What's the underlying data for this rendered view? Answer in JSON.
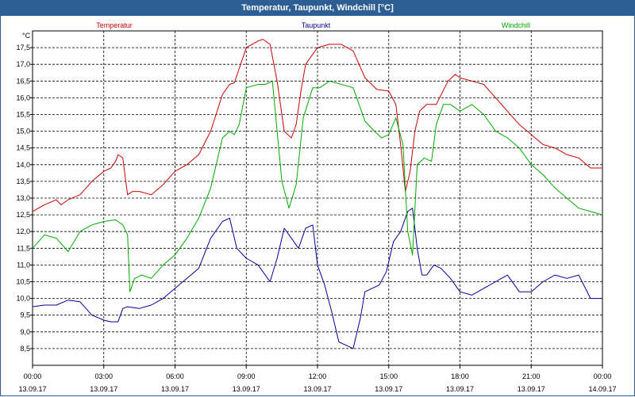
{
  "window": {
    "title": "Temperatur, Taupunkt, Windchill [°C]"
  },
  "colors": {
    "temperature": "#cc0000",
    "dewpoint": "#000099",
    "windchill": "#00aa00",
    "grid": "#000000",
    "frame": "#2c5d93"
  },
  "chart_data": {
    "type": "line",
    "title": "Temperatur, Taupunkt, Windchill [°C]",
    "ylabel": "°C",
    "ylim": [
      8.0,
      18.0
    ],
    "yticks": [
      "8,5",
      "9,0",
      "9,5",
      "10,0",
      "10,5",
      "11,0",
      "11,5",
      "12,0",
      "12,5",
      "13,0",
      "13,5",
      "14,0",
      "14,5",
      "15,0",
      "15,5",
      "16,0",
      "16,5",
      "17,0",
      "17,5"
    ],
    "xlim": [
      0,
      24
    ],
    "xticks": [
      {
        "time": "00:00",
        "date": "13.09.17"
      },
      {
        "time": "03:00",
        "date": "13.09.17"
      },
      {
        "time": "06:00",
        "date": "13.09.17"
      },
      {
        "time": "09:00",
        "date": "13.09.17"
      },
      {
        "time": "12:00",
        "date": "13.09.17"
      },
      {
        "time": "15:00",
        "date": "13.09.17"
      },
      {
        "time": "18:00",
        "date": "13.09.17"
      },
      {
        "time": "21:00",
        "date": "13.09.17"
      },
      {
        "time": "00:00",
        "date": "14.09.17"
      }
    ],
    "series": [
      {
        "name": "Temperatur",
        "x": [
          0,
          0.5,
          1,
          1.2,
          1.5,
          2,
          2.5,
          3,
          3.3,
          3.5,
          3.6,
          3.8,
          4,
          4.2,
          4.5,
          5,
          5.5,
          6,
          6.5,
          7,
          7.5,
          8,
          8.3,
          8.5,
          9,
          9.5,
          9.7,
          10,
          10.3,
          10.6,
          10.9,
          11.1,
          11.3,
          11.5,
          12,
          12.5,
          13,
          13.5,
          14,
          14.5,
          15,
          15.3,
          15.5,
          15.7,
          15.9,
          16.1,
          16.3,
          16.6,
          17,
          17.5,
          17.8,
          18,
          18.5,
          19,
          19.5,
          20,
          20.5,
          21,
          21.5,
          22,
          22.5,
          23,
          23.5,
          24
        ],
        "values": [
          12.6,
          12.8,
          12.95,
          12.8,
          12.95,
          13.1,
          13.5,
          13.8,
          13.9,
          14.1,
          14.3,
          14.2,
          13.1,
          13.2,
          13.2,
          13.1,
          13.4,
          13.8,
          14.0,
          14.3,
          15.0,
          16.1,
          16.4,
          16.45,
          17.5,
          17.7,
          17.75,
          17.6,
          16.5,
          15.0,
          14.8,
          15.2,
          16.2,
          17.0,
          17.5,
          17.6,
          17.6,
          17.4,
          16.6,
          16.25,
          16.2,
          15.8,
          14.6,
          13.2,
          13.8,
          15.0,
          15.6,
          15.8,
          15.8,
          16.5,
          16.7,
          16.6,
          16.5,
          16.4,
          16.0,
          15.6,
          15.2,
          14.9,
          14.6,
          14.5,
          14.3,
          14.2,
          13.9,
          13.9
        ]
      },
      {
        "name": "Taupunkt",
        "x": [
          0,
          0.5,
          1,
          1.5,
          2,
          2.5,
          3,
          3.3,
          3.6,
          3.8,
          4,
          4.5,
          5,
          5.5,
          6,
          6.5,
          7,
          7.5,
          8,
          8.3,
          8.6,
          9,
          9.5,
          10,
          10.3,
          10.6,
          10.9,
          11.2,
          11.5,
          11.8,
          12,
          12.3,
          12.6,
          12.9,
          13.2,
          13.5,
          13.8,
          14,
          14.3,
          14.6,
          14.9,
          15.2,
          15.5,
          15.8,
          16,
          16.2,
          16.4,
          16.6,
          16.9,
          17.2,
          17.6,
          18,
          18.5,
          19,
          19.5,
          20,
          20.5,
          21,
          21.5,
          22,
          22.5,
          23,
          23.5,
          24
        ],
        "values": [
          9.75,
          9.8,
          9.8,
          9.95,
          9.9,
          9.5,
          9.35,
          9.3,
          9.3,
          9.7,
          9.75,
          9.7,
          9.8,
          10.0,
          10.3,
          10.6,
          10.9,
          11.8,
          12.3,
          12.4,
          11.5,
          11.2,
          11.0,
          10.5,
          11.2,
          12.1,
          11.8,
          11.5,
          12.1,
          12.2,
          11.0,
          10.4,
          9.6,
          8.7,
          8.6,
          8.5,
          9.4,
          10.2,
          10.3,
          10.4,
          10.8,
          11.7,
          12.0,
          12.6,
          12.7,
          11.5,
          10.7,
          10.7,
          11.0,
          10.9,
          10.6,
          10.2,
          10.1,
          10.3,
          10.5,
          10.7,
          10.2,
          10.2,
          10.5,
          10.7,
          10.6,
          10.7,
          10.0,
          10.0
        ]
      },
      {
        "name": "Windchill",
        "x": [
          0,
          0.5,
          1,
          1.5,
          2,
          2.5,
          3,
          3.5,
          3.8,
          4,
          4.1,
          4.3,
          4.6,
          5,
          5.5,
          6,
          6.5,
          7,
          7.5,
          8,
          8.3,
          8.5,
          8.7,
          9,
          9.5,
          9.8,
          10.1,
          10.5,
          10.8,
          11.1,
          11.4,
          11.8,
          12.1,
          12.5,
          13,
          13.5,
          14,
          14.4,
          14.7,
          15,
          15.3,
          15.6,
          15.8,
          16,
          16.2,
          16.5,
          16.8,
          17,
          17.3,
          17.6,
          18,
          18.5,
          19,
          19.5,
          20,
          20.5,
          21,
          21.5,
          22,
          22.5,
          23,
          23.5,
          24
        ],
        "values": [
          11.5,
          11.9,
          11.8,
          11.4,
          12.0,
          12.2,
          12.3,
          12.35,
          12.2,
          11.9,
          10.2,
          10.6,
          10.7,
          10.6,
          11.0,
          11.3,
          11.8,
          12.4,
          13.3,
          14.8,
          15.0,
          14.9,
          15.2,
          16.3,
          16.4,
          16.4,
          16.5,
          13.5,
          12.7,
          13.4,
          15.4,
          16.3,
          16.3,
          16.5,
          16.4,
          16.3,
          15.3,
          15.0,
          14.8,
          14.9,
          15.4,
          14.6,
          12.0,
          11.3,
          14.0,
          14.2,
          14.1,
          15.2,
          15.8,
          15.8,
          15.6,
          15.8,
          15.5,
          15.0,
          14.8,
          14.5,
          14.0,
          13.7,
          13.3,
          13.0,
          12.7,
          12.6,
          12.5
        ]
      }
    ]
  }
}
